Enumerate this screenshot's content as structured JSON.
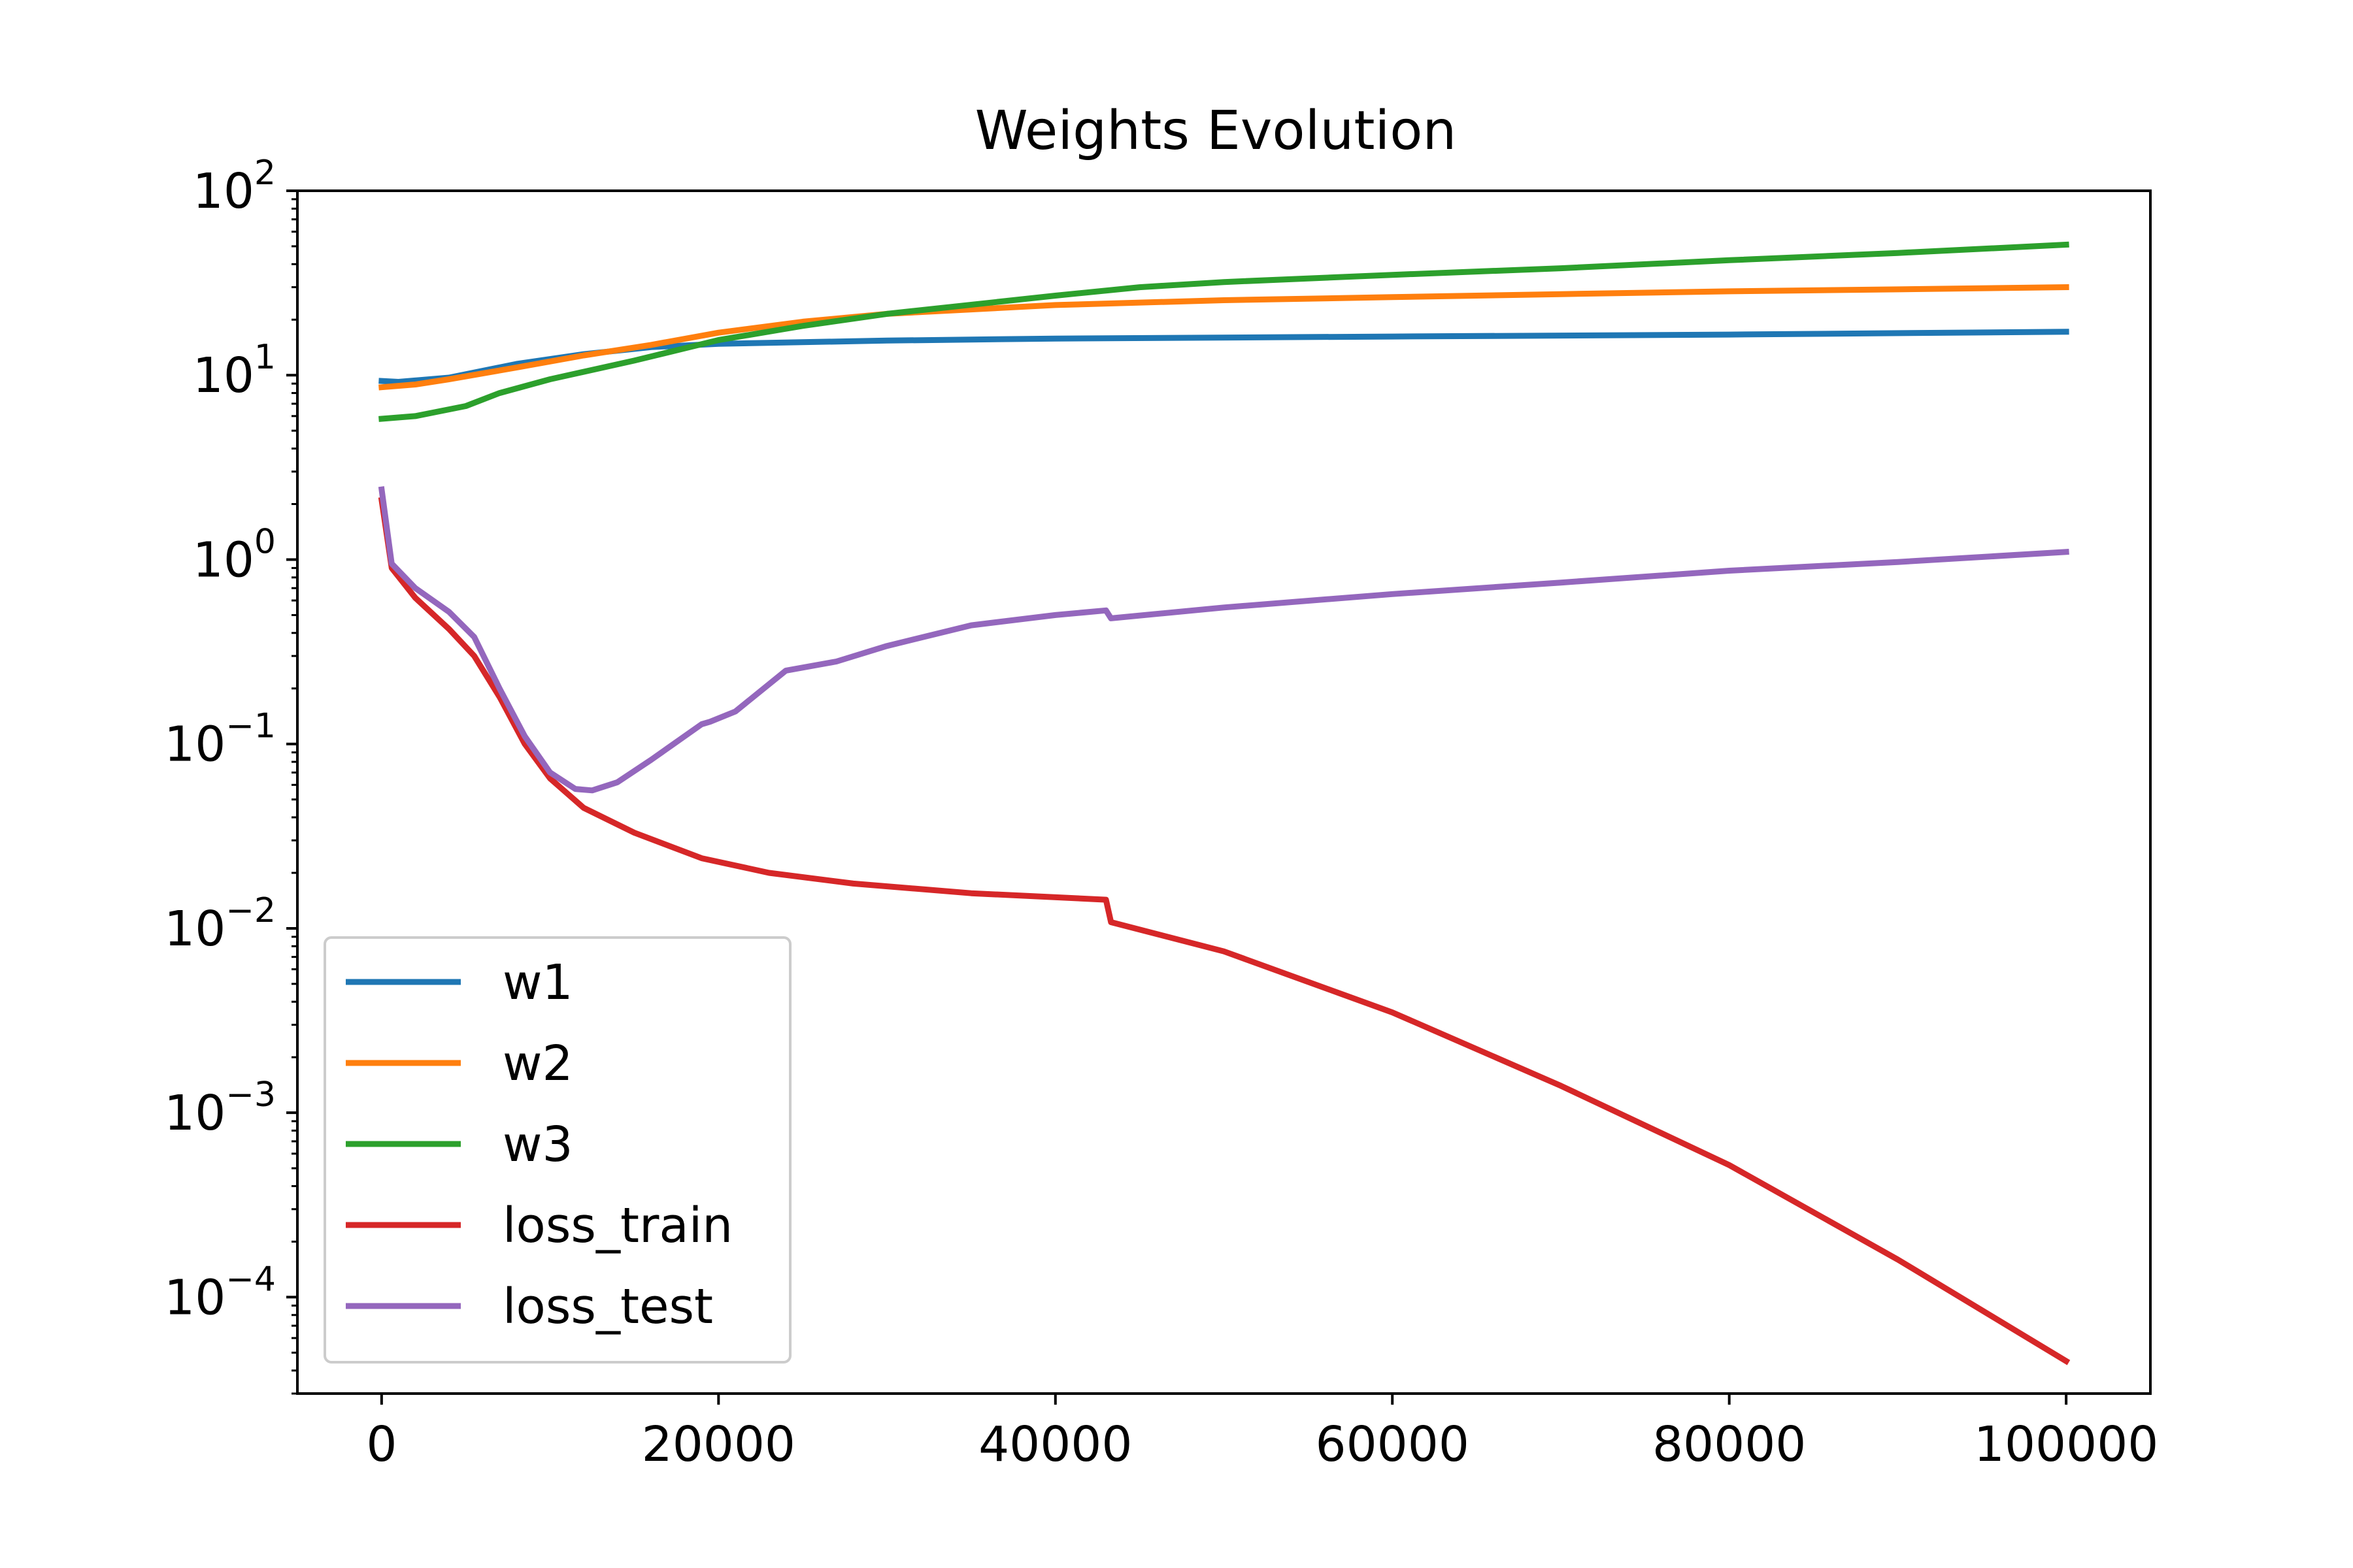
{
  "chart_data": {
    "type": "line",
    "title": "Weights Evolution",
    "xlabel": "",
    "ylabel": "",
    "xlim": [
      -5000,
      105000
    ],
    "ylim": [
      3e-05,
      100
    ],
    "yscale": "log",
    "grid": false,
    "legend_position": "lower-left",
    "x_ticks": [
      0,
      20000,
      40000,
      60000,
      80000,
      100000
    ],
    "x_tick_labels": [
      "0",
      "20000",
      "40000",
      "60000",
      "80000",
      "100000"
    ],
    "y_ticks": [
      0.0001,
      0.001,
      0.01,
      0.1,
      1,
      10,
      100
    ],
    "y_tick_labels": [
      {
        "base": "10",
        "exp": "−4"
      },
      {
        "base": "10",
        "exp": "−3"
      },
      {
        "base": "10",
        "exp": "−2"
      },
      {
        "base": "10",
        "exp": "−1"
      },
      {
        "base": "10",
        "exp": "0"
      },
      {
        "base": "10",
        "exp": "1"
      },
      {
        "base": "10",
        "exp": "2"
      }
    ],
    "series": [
      {
        "name": "w1",
        "color": "#1f77b4",
        "points": [
          [
            0,
            9.3
          ],
          [
            1000,
            9.2
          ],
          [
            4000,
            9.7
          ],
          [
            8000,
            11.5
          ],
          [
            12000,
            13.0
          ],
          [
            16000,
            14.2
          ],
          [
            20000,
            14.8
          ],
          [
            30000,
            15.4
          ],
          [
            40000,
            15.8
          ],
          [
            60000,
            16.2
          ],
          [
            80000,
            16.6
          ],
          [
            100000,
            17.2
          ]
        ]
      },
      {
        "name": "w2",
        "color": "#ff7f0e",
        "points": [
          [
            0,
            8.6
          ],
          [
            2000,
            8.9
          ],
          [
            4000,
            9.5
          ],
          [
            8000,
            11.0
          ],
          [
            12000,
            12.8
          ],
          [
            16000,
            14.6
          ],
          [
            20000,
            17.0
          ],
          [
            25000,
            19.5
          ],
          [
            30000,
            21.5
          ],
          [
            40000,
            24.0
          ],
          [
            50000,
            25.5
          ],
          [
            60000,
            26.5
          ],
          [
            70000,
            27.5
          ],
          [
            80000,
            28.5
          ],
          [
            90000,
            29.2
          ],
          [
            100000,
            30.0
          ]
        ]
      },
      {
        "name": "w3",
        "color": "#2ca02c",
        "points": [
          [
            0,
            5.8
          ],
          [
            2000,
            6.0
          ],
          [
            5000,
            6.8
          ],
          [
            7000,
            8.0
          ],
          [
            10000,
            9.5
          ],
          [
            15000,
            12.0
          ],
          [
            20000,
            15.5
          ],
          [
            25000,
            18.5
          ],
          [
            30000,
            21.5
          ],
          [
            40000,
            27.0
          ],
          [
            45000,
            30.0
          ],
          [
            50000,
            32.0
          ],
          [
            60000,
            35.0
          ],
          [
            70000,
            38.0
          ],
          [
            80000,
            42.0
          ],
          [
            90000,
            46.0
          ],
          [
            100000,
            51.0
          ]
        ]
      },
      {
        "name": "loss_train",
        "color": "#d62728",
        "points": [
          [
            0,
            2.1
          ],
          [
            600,
            0.9
          ],
          [
            2000,
            0.62
          ],
          [
            4000,
            0.42
          ],
          [
            5500,
            0.3
          ],
          [
            7000,
            0.18
          ],
          [
            8500,
            0.1
          ],
          [
            10000,
            0.065
          ],
          [
            12000,
            0.045
          ],
          [
            15000,
            0.033
          ],
          [
            19000,
            0.024
          ],
          [
            23000,
            0.02
          ],
          [
            28000,
            0.0175
          ],
          [
            35000,
            0.0155
          ],
          [
            43000,
            0.0143
          ],
          [
            43300,
            0.0108
          ],
          [
            50000,
            0.0075
          ],
          [
            60000,
            0.0035
          ],
          [
            70000,
            0.0014
          ],
          [
            80000,
            0.00052
          ],
          [
            90000,
            0.00016
          ],
          [
            100000,
            4.5e-05
          ]
        ]
      },
      {
        "name": "loss_test",
        "color": "#9467bd",
        "points": [
          [
            0,
            2.4
          ],
          [
            600,
            0.95
          ],
          [
            2000,
            0.7
          ],
          [
            4000,
            0.52
          ],
          [
            5500,
            0.38
          ],
          [
            7000,
            0.2
          ],
          [
            8500,
            0.11
          ],
          [
            10000,
            0.07
          ],
          [
            11500,
            0.057
          ],
          [
            12500,
            0.056
          ],
          [
            14000,
            0.062
          ],
          [
            16000,
            0.082
          ],
          [
            19000,
            0.128
          ],
          [
            19500,
            0.132
          ],
          [
            21000,
            0.15
          ],
          [
            24000,
            0.25
          ],
          [
            27000,
            0.28
          ],
          [
            30000,
            0.34
          ],
          [
            35000,
            0.44
          ],
          [
            40000,
            0.5
          ],
          [
            43000,
            0.53
          ],
          [
            43300,
            0.48
          ],
          [
            50000,
            0.55
          ],
          [
            60000,
            0.65
          ],
          [
            70000,
            0.75
          ],
          [
            80000,
            0.87
          ],
          [
            90000,
            0.97
          ],
          [
            100000,
            1.1
          ]
        ]
      }
    ]
  }
}
